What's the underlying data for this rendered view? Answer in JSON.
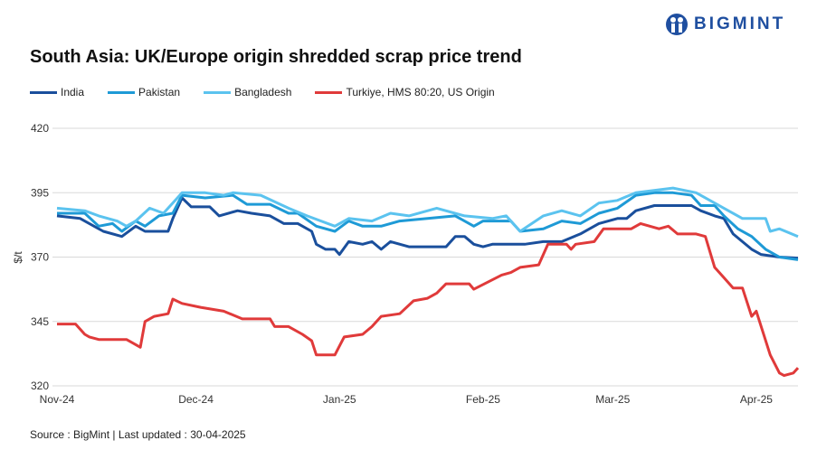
{
  "logo_text": "BIGMINT",
  "chart_data": {
    "type": "line",
    "title": "South Asia: UK/Europe origin shredded scrap price trend",
    "ylabel": "$/t",
    "xlabel": "",
    "ylim": [
      320,
      420
    ],
    "yticks": [
      320,
      345,
      370,
      395,
      420
    ],
    "xticks": [
      {
        "date": "2024-11-01",
        "label": "Nov-24"
      },
      {
        "date": "2024-12-01",
        "label": "Dec-24"
      },
      {
        "date": "2025-01-01",
        "label": "Jan-25"
      },
      {
        "date": "2025-02-01",
        "label": "Feb-25"
      },
      {
        "date": "2025-03-01",
        "label": "Mar-25"
      },
      {
        "date": "2025-04-01",
        "label": "Apr-25"
      }
    ],
    "grid": true,
    "legend": "top",
    "series": [
      {
        "name": "India",
        "color": "#1a4f9c",
        "points": [
          [
            "2024-11-01",
            386
          ],
          [
            "2024-11-06",
            385
          ],
          [
            "2024-11-11",
            380
          ],
          [
            "2024-11-15",
            378
          ],
          [
            "2024-11-18",
            382
          ],
          [
            "2024-11-20",
            380
          ],
          [
            "2024-11-25",
            380
          ],
          [
            "2024-11-26",
            385
          ],
          [
            "2024-11-28",
            393
          ],
          [
            "2024-11-30",
            389.5
          ],
          [
            "2024-12-04",
            389.5
          ],
          [
            "2024-12-06",
            386
          ],
          [
            "2024-12-10",
            388
          ],
          [
            "2024-12-13",
            387
          ],
          [
            "2024-12-17",
            386
          ],
          [
            "2024-12-20",
            383
          ],
          [
            "2024-12-23",
            383
          ],
          [
            "2024-12-26",
            380
          ],
          [
            "2024-12-27",
            375
          ],
          [
            "2024-12-29",
            373
          ],
          [
            "2024-12-31",
            373
          ],
          [
            "2025-01-01",
            371
          ],
          [
            "2025-01-03",
            376
          ],
          [
            "2025-01-06",
            375
          ],
          [
            "2025-01-08",
            376
          ],
          [
            "2025-01-10",
            373
          ],
          [
            "2025-01-12",
            376
          ],
          [
            "2025-01-16",
            374
          ],
          [
            "2025-01-24",
            374
          ],
          [
            "2025-01-26",
            378
          ],
          [
            "2025-01-28",
            378
          ],
          [
            "2025-01-30",
            375
          ],
          [
            "2025-02-01",
            374
          ],
          [
            "2025-02-03",
            375
          ],
          [
            "2025-02-06",
            375
          ],
          [
            "2025-02-10",
            375
          ],
          [
            "2025-02-14",
            376
          ],
          [
            "2025-02-18",
            376
          ],
          [
            "2025-02-22",
            379
          ],
          [
            "2025-02-26",
            383
          ],
          [
            "2025-03-02",
            385
          ],
          [
            "2025-03-04",
            385
          ],
          [
            "2025-03-06",
            388
          ],
          [
            "2025-03-10",
            390
          ],
          [
            "2025-03-13",
            390
          ],
          [
            "2025-03-18",
            390
          ],
          [
            "2025-03-20",
            388
          ],
          [
            "2025-03-23",
            386
          ],
          [
            "2025-03-25",
            385
          ],
          [
            "2025-03-27",
            379
          ],
          [
            "2025-03-31",
            373
          ],
          [
            "2025-04-02",
            371
          ],
          [
            "2025-04-06",
            370
          ],
          [
            "2025-04-10",
            369.6
          ]
        ]
      },
      {
        "name": "Pakistan",
        "color": "#1e9ad6",
        "points": [
          [
            "2024-11-01",
            387
          ],
          [
            "2024-11-07",
            387
          ],
          [
            "2024-11-10",
            382
          ],
          [
            "2024-11-13",
            383
          ],
          [
            "2024-11-15",
            380
          ],
          [
            "2024-11-18",
            384
          ],
          [
            "2024-11-20",
            382
          ],
          [
            "2024-11-23",
            386
          ],
          [
            "2024-11-26",
            387
          ],
          [
            "2024-11-28",
            394
          ],
          [
            "2024-12-03",
            393
          ],
          [
            "2024-12-09",
            394
          ],
          [
            "2024-12-12",
            390.5
          ],
          [
            "2024-12-17",
            390.5
          ],
          [
            "2024-12-21",
            387
          ],
          [
            "2024-12-23",
            387
          ],
          [
            "2024-12-27",
            382
          ],
          [
            "2024-12-31",
            380
          ],
          [
            "2025-01-03",
            384
          ],
          [
            "2025-01-06",
            382
          ],
          [
            "2025-01-10",
            382
          ],
          [
            "2025-01-14",
            384
          ],
          [
            "2025-01-20",
            385
          ],
          [
            "2025-01-26",
            386
          ],
          [
            "2025-01-30",
            382
          ],
          [
            "2025-02-01",
            384
          ],
          [
            "2025-02-07",
            384
          ],
          [
            "2025-02-09",
            380
          ],
          [
            "2025-02-14",
            381
          ],
          [
            "2025-02-18",
            384
          ],
          [
            "2025-02-22",
            383
          ],
          [
            "2025-02-26",
            387
          ],
          [
            "2025-03-02",
            389
          ],
          [
            "2025-03-06",
            394
          ],
          [
            "2025-03-10",
            395
          ],
          [
            "2025-03-14",
            395
          ],
          [
            "2025-03-18",
            394
          ],
          [
            "2025-03-20",
            390
          ],
          [
            "2025-03-23",
            390
          ],
          [
            "2025-03-25",
            386
          ],
          [
            "2025-03-28",
            381
          ],
          [
            "2025-03-31",
            378
          ],
          [
            "2025-04-03",
            373
          ],
          [
            "2025-04-06",
            370
          ],
          [
            "2025-04-10",
            369
          ]
        ]
      },
      {
        "name": "Bangladesh",
        "color": "#5bc3ef",
        "points": [
          [
            "2024-11-01",
            389
          ],
          [
            "2024-11-07",
            388
          ],
          [
            "2024-11-10",
            386
          ],
          [
            "2024-11-14",
            384
          ],
          [
            "2024-11-16",
            382
          ],
          [
            "2024-11-18",
            384
          ],
          [
            "2024-11-21",
            389
          ],
          [
            "2024-11-24",
            387
          ],
          [
            "2024-11-27",
            393
          ],
          [
            "2024-11-28",
            395
          ],
          [
            "2024-12-03",
            395
          ],
          [
            "2024-12-07",
            394
          ],
          [
            "2024-12-09",
            395
          ],
          [
            "2024-12-15",
            394
          ],
          [
            "2024-12-21",
            389
          ],
          [
            "2024-12-25",
            386
          ],
          [
            "2024-12-31",
            382
          ],
          [
            "2025-01-03",
            385
          ],
          [
            "2025-01-08",
            384
          ],
          [
            "2025-01-12",
            387
          ],
          [
            "2025-01-16",
            386
          ],
          [
            "2025-01-22",
            389
          ],
          [
            "2025-01-28",
            386
          ],
          [
            "2025-02-03",
            385
          ],
          [
            "2025-02-06",
            386
          ],
          [
            "2025-02-09",
            380
          ],
          [
            "2025-02-14",
            386
          ],
          [
            "2025-02-18",
            388
          ],
          [
            "2025-02-22",
            386
          ],
          [
            "2025-02-26",
            391
          ],
          [
            "2025-03-02",
            392
          ],
          [
            "2025-03-06",
            395
          ],
          [
            "2025-03-14",
            396.8
          ],
          [
            "2025-03-19",
            395
          ],
          [
            "2025-03-22",
            392
          ],
          [
            "2025-03-25",
            389
          ],
          [
            "2025-03-29",
            385
          ],
          [
            "2025-04-03",
            385
          ],
          [
            "2025-04-04",
            380
          ],
          [
            "2025-04-06",
            381
          ],
          [
            "2025-04-10",
            378
          ]
        ]
      },
      {
        "name": "Turkiye, HMS 80:20, US Origin",
        "color": "#e03a3a",
        "points": [
          [
            "2024-11-01",
            344
          ],
          [
            "2024-11-05",
            344
          ],
          [
            "2024-11-07",
            340
          ],
          [
            "2024-11-08",
            339
          ],
          [
            "2024-11-10",
            338
          ],
          [
            "2024-11-16",
            338
          ],
          [
            "2024-11-18",
            336
          ],
          [
            "2024-11-19",
            335
          ],
          [
            "2024-11-20",
            345
          ],
          [
            "2024-11-22",
            347
          ],
          [
            "2024-11-25",
            348
          ],
          [
            "2024-11-26",
            353.7
          ],
          [
            "2024-11-28",
            352
          ],
          [
            "2024-12-02",
            350.5
          ],
          [
            "2024-12-07",
            349
          ],
          [
            "2024-12-11",
            346
          ],
          [
            "2024-12-17",
            346
          ],
          [
            "2024-12-18",
            343
          ],
          [
            "2024-12-21",
            343
          ],
          [
            "2024-12-24",
            340
          ],
          [
            "2024-12-26",
            337.5
          ],
          [
            "2024-12-27",
            332
          ],
          [
            "2024-12-31",
            332
          ],
          [
            "2025-01-02",
            339
          ],
          [
            "2025-01-06",
            340
          ],
          [
            "2025-01-08",
            343
          ],
          [
            "2025-01-10",
            347
          ],
          [
            "2025-01-14",
            348
          ],
          [
            "2025-01-17",
            353
          ],
          [
            "2025-01-20",
            354
          ],
          [
            "2025-01-22",
            356
          ],
          [
            "2025-01-24",
            359.6
          ],
          [
            "2025-01-29",
            359.6
          ],
          [
            "2025-01-30",
            357.5
          ],
          [
            "2025-02-05",
            363
          ],
          [
            "2025-02-07",
            364
          ],
          [
            "2025-02-09",
            366
          ],
          [
            "2025-02-13",
            367
          ],
          [
            "2025-02-15",
            375
          ],
          [
            "2025-02-19",
            375
          ],
          [
            "2025-02-20",
            373
          ],
          [
            "2025-02-21",
            375
          ],
          [
            "2025-02-25",
            376
          ],
          [
            "2025-02-27",
            381
          ],
          [
            "2025-03-05",
            381
          ],
          [
            "2025-03-07",
            383
          ],
          [
            "2025-03-09",
            382
          ],
          [
            "2025-03-11",
            381
          ],
          [
            "2025-03-13",
            382
          ],
          [
            "2025-03-15",
            379
          ],
          [
            "2025-03-19",
            379
          ],
          [
            "2025-03-21",
            378
          ],
          [
            "2025-03-23",
            366
          ],
          [
            "2025-03-25",
            362
          ],
          [
            "2025-03-27",
            358
          ],
          [
            "2025-03-29",
            358
          ],
          [
            "2025-03-31",
            347
          ],
          [
            "2025-04-01",
            349
          ],
          [
            "2025-04-04",
            332
          ],
          [
            "2025-04-06",
            325
          ],
          [
            "2025-04-07",
            324
          ],
          [
            "2025-04-09",
            325
          ],
          [
            "2025-04-10",
            327
          ]
        ]
      }
    ]
  },
  "source": "Source : BigMint | Last updated : 30-04-2025"
}
